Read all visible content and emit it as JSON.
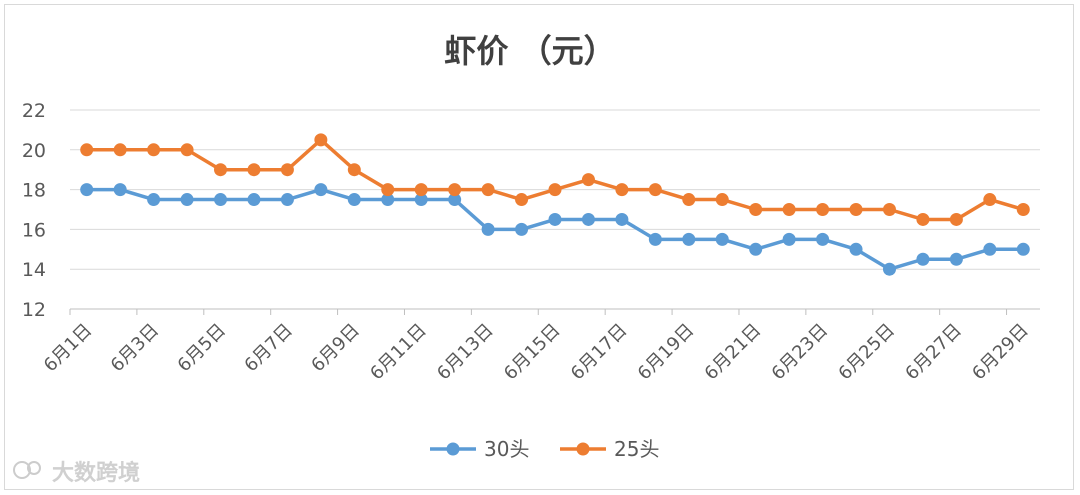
{
  "chart_data": {
    "type": "line",
    "title": "虾价 （元）",
    "xlabel": "",
    "ylabel": "",
    "ylim": [
      12,
      22
    ],
    "yticks": [
      12,
      14,
      16,
      18,
      20,
      22
    ],
    "grid": true,
    "legend_position": "bottom",
    "categories": [
      "6月1日",
      "6月2日",
      "6月3日",
      "6月4日",
      "6月5日",
      "6月6日",
      "6月7日",
      "6月8日",
      "6月9日",
      "6月10日",
      "6月11日",
      "6月12日",
      "6月13日",
      "6月14日",
      "6月15日",
      "6月16日",
      "6月17日",
      "6月18日",
      "6月19日",
      "6月20日",
      "6月21日",
      "6月22日",
      "6月23日",
      "6月24日",
      "6月25日",
      "6月26日",
      "6月27日",
      "6月28日",
      "6月29日"
    ],
    "tick_labels": [
      "6月1日",
      "6月3日",
      "6月5日",
      "6月7日",
      "6月9日",
      "6月11日",
      "6月13日",
      "6月15日",
      "6月17日",
      "6月19日",
      "6月21日",
      "6月23日",
      "6月25日",
      "6月27日",
      "6月29日"
    ],
    "series": [
      {
        "name": "30头",
        "color": "#5B9BD5",
        "values": [
          18,
          18,
          17.5,
          17.5,
          17.5,
          17.5,
          17.5,
          18,
          17.5,
          17.5,
          17.5,
          17.5,
          16,
          16,
          16.5,
          16.5,
          16.5,
          15.5,
          15.5,
          15.5,
          15,
          15.5,
          15.5,
          15,
          14,
          14.5,
          14.5,
          15,
          15
        ]
      },
      {
        "name": "25头",
        "color": "#ED7D31",
        "values": [
          20,
          20,
          20,
          20,
          19,
          19,
          19,
          20.5,
          19,
          18,
          18,
          18,
          18,
          17.5,
          18,
          18.5,
          18,
          18,
          17.5,
          17.5,
          17,
          17,
          17,
          17,
          17,
          16.5,
          16.5,
          17.5,
          17
        ]
      }
    ]
  },
  "colors": {
    "grid": "#d9d9d9",
    "axis": "#bfbfbf"
  },
  "watermark": {
    "text": "大数跨境"
  }
}
